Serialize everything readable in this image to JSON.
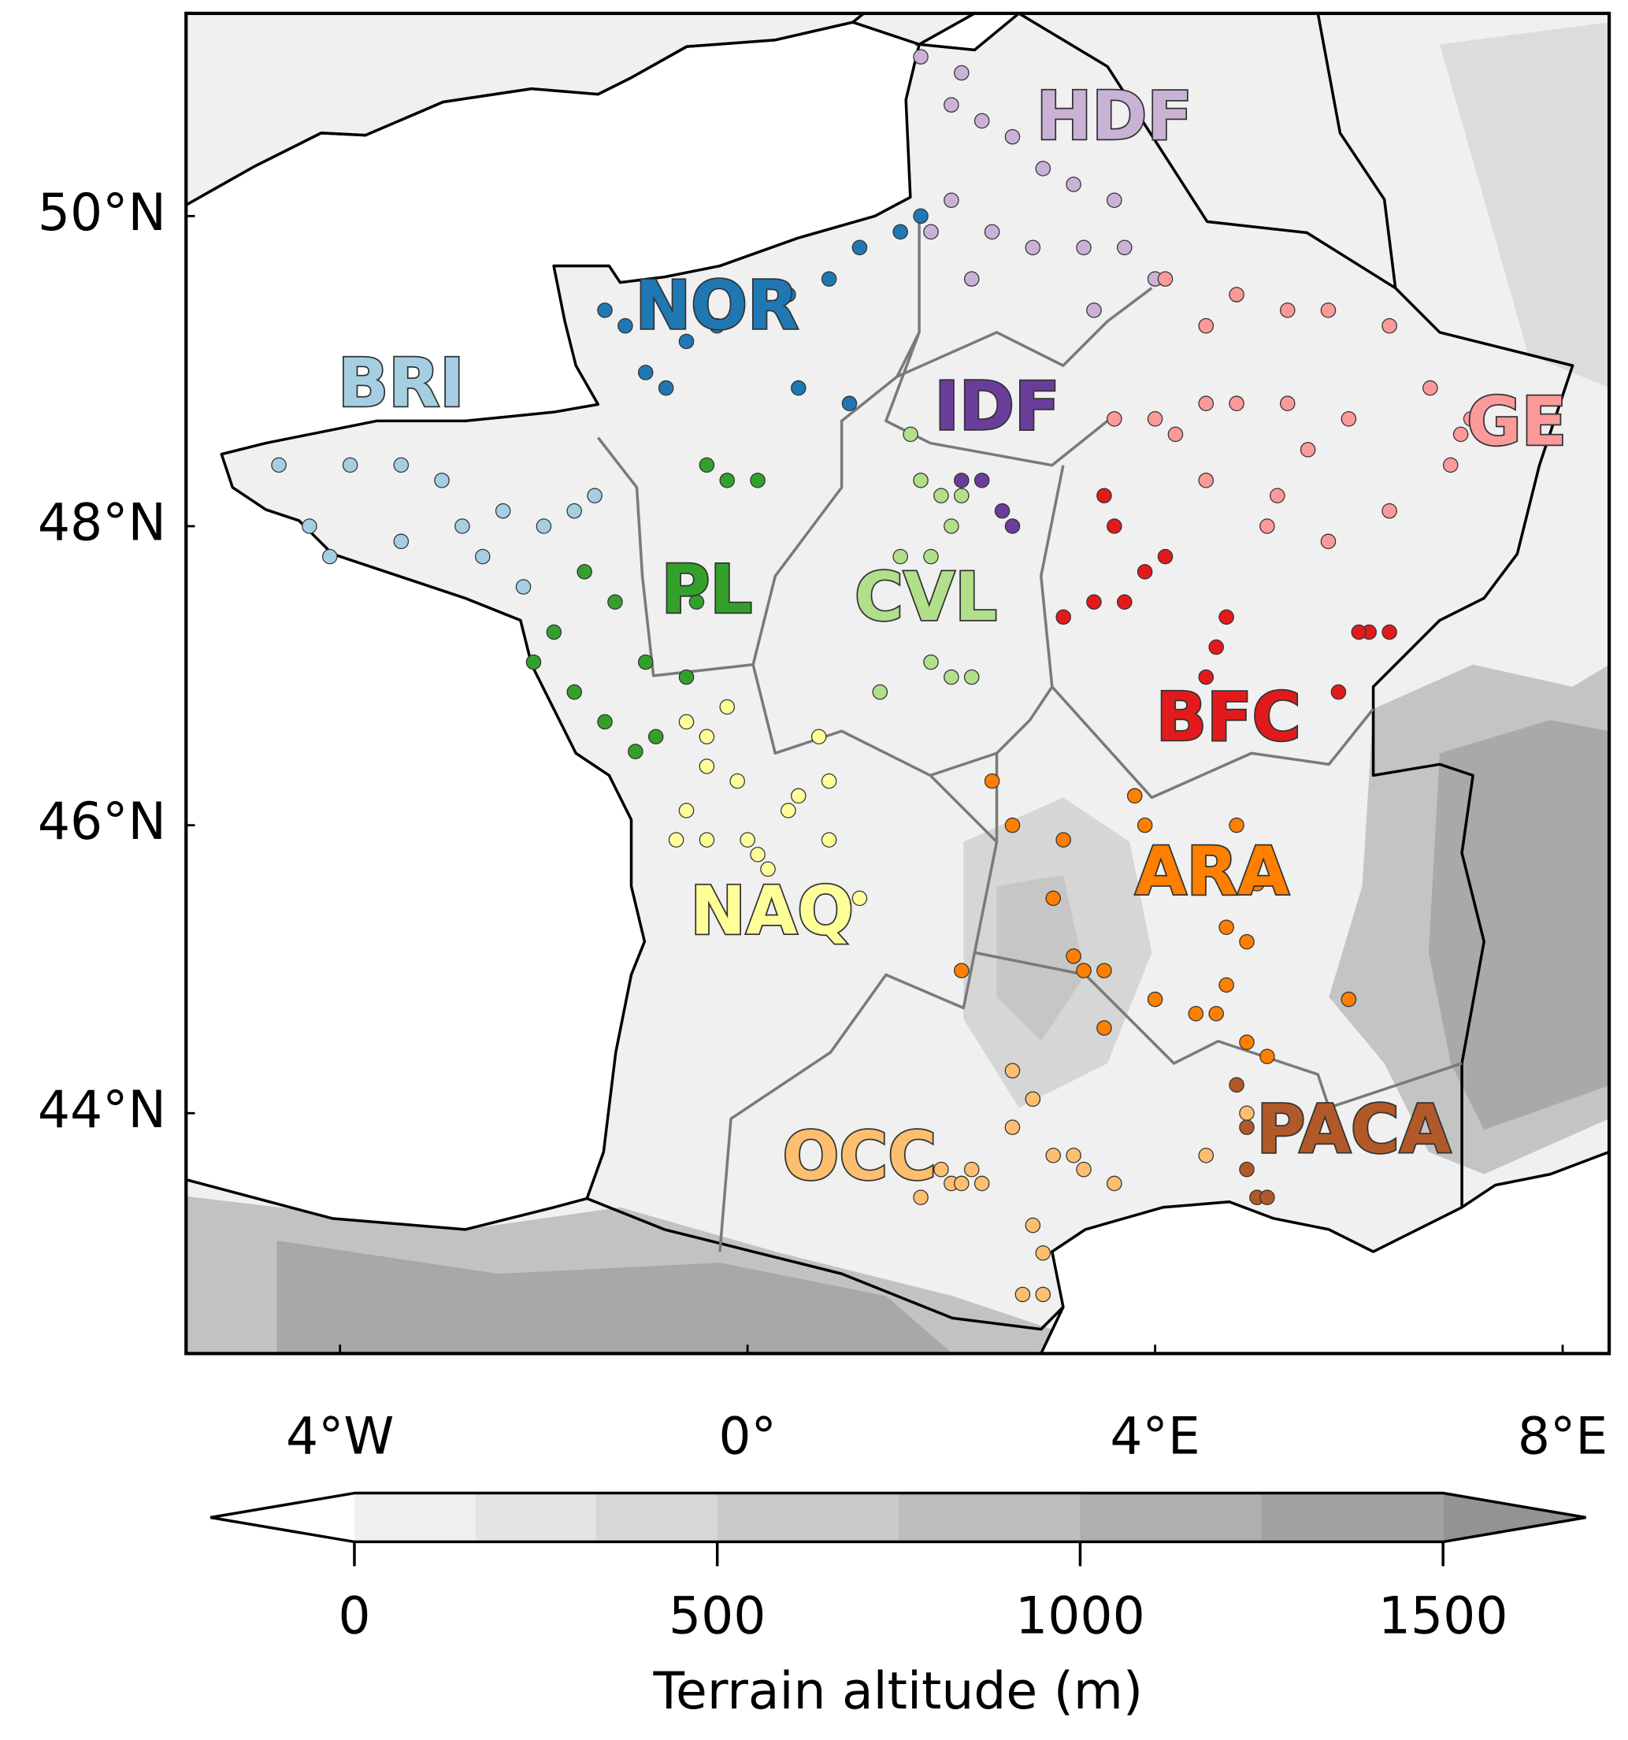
{
  "map": {
    "lat_ticks": [
      {
        "value": 50,
        "label": "50°N"
      },
      {
        "value": 48,
        "label": "48°N"
      },
      {
        "value": 46,
        "label": "46°N"
      },
      {
        "value": 44,
        "label": "44°N"
      }
    ],
    "lon_ticks": [
      {
        "value": -4,
        "label": "4°W"
      },
      {
        "value": 0,
        "label": "0°"
      },
      {
        "value": 4,
        "label": "4°E"
      },
      {
        "value": 8,
        "label": "8°E"
      }
    ],
    "regions": [
      {
        "label": "HDF",
        "color": "#cab2d6",
        "label_at": [
          3.6,
          50.6
        ],
        "stations": [
          [
            2.0,
            50.7
          ],
          [
            2.3,
            50.6
          ],
          [
            2.6,
            50.5
          ],
          [
            2.9,
            50.3
          ],
          [
            3.2,
            50.2
          ],
          [
            3.6,
            50.1
          ],
          [
            2.0,
            50.1
          ],
          [
            2.4,
            49.9
          ],
          [
            2.8,
            49.8
          ],
          [
            3.3,
            49.8
          ],
          [
            3.7,
            49.8
          ],
          [
            2.2,
            49.6
          ],
          [
            1.8,
            49.9
          ],
          [
            3.4,
            49.4
          ],
          [
            4.0,
            49.6
          ],
          [
            1.7,
            51.0
          ],
          [
            2.1,
            50.9
          ]
        ]
      },
      {
        "label": "NOR",
        "color": "#1f78b4",
        "label_at": [
          -0.3,
          49.4
        ],
        "stations": [
          [
            -1.4,
            49.4
          ],
          [
            -1.2,
            49.3
          ],
          [
            -0.6,
            49.2
          ],
          [
            -0.3,
            49.3
          ],
          [
            0.4,
            49.5
          ],
          [
            0.8,
            49.6
          ],
          [
            1.1,
            49.8
          ],
          [
            1.5,
            49.9
          ],
          [
            1.7,
            50.0
          ],
          [
            -0.8,
            48.9
          ],
          [
            0.5,
            48.9
          ],
          [
            1.0,
            48.8
          ],
          [
            -1.0,
            49.0
          ]
        ]
      },
      {
        "label": "BRI",
        "color": "#a6cee3",
        "label_at": [
          -3.4,
          48.9
        ],
        "stations": [
          [
            -4.6,
            48.4
          ],
          [
            -4.3,
            48.0
          ],
          [
            -3.9,
            48.4
          ],
          [
            -3.4,
            48.4
          ],
          [
            -3.0,
            48.3
          ],
          [
            -2.8,
            48.0
          ],
          [
            -2.6,
            47.8
          ],
          [
            -2.4,
            48.1
          ],
          [
            -2.0,
            48.0
          ],
          [
            -1.7,
            48.1
          ],
          [
            -3.4,
            47.9
          ],
          [
            -2.2,
            47.6
          ],
          [
            -1.5,
            48.2
          ],
          [
            -4.1,
            47.8
          ]
        ]
      },
      {
        "label": "IDF",
        "color": "#6a3d9a",
        "label_at": [
          2.45,
          48.75
        ],
        "stations": [
          [
            2.1,
            48.3
          ],
          [
            2.3,
            48.3
          ],
          [
            2.5,
            48.1
          ],
          [
            2.6,
            48.0
          ]
        ]
      },
      {
        "label": "GE",
        "color": "#fb9a99",
        "label_at": [
          7.55,
          48.65
        ],
        "stations": [
          [
            4.1,
            49.6
          ],
          [
            4.8,
            49.5
          ],
          [
            5.3,
            49.4
          ],
          [
            5.7,
            49.4
          ],
          [
            6.3,
            49.3
          ],
          [
            4.5,
            49.3
          ],
          [
            3.6,
            48.7
          ],
          [
            4.0,
            48.7
          ],
          [
            4.2,
            48.6
          ],
          [
            4.5,
            48.8
          ],
          [
            4.8,
            48.8
          ],
          [
            5.3,
            48.8
          ],
          [
            5.5,
            48.5
          ],
          [
            5.9,
            48.7
          ],
          [
            6.7,
            48.9
          ],
          [
            7.1,
            48.7
          ],
          [
            7.0,
            48.6
          ],
          [
            6.9,
            48.4
          ],
          [
            4.5,
            48.3
          ],
          [
            5.7,
            47.9
          ],
          [
            5.1,
            48.0
          ],
          [
            5.2,
            48.2
          ],
          [
            6.3,
            48.1
          ]
        ]
      },
      {
        "label": "PL",
        "color": "#33a02c",
        "label_at": [
          -0.4,
          47.55
        ],
        "stations": [
          [
            -1.6,
            47.7
          ],
          [
            -1.3,
            47.5
          ],
          [
            -1.9,
            47.3
          ],
          [
            -2.1,
            47.1
          ],
          [
            -1.7,
            46.9
          ],
          [
            -1.4,
            46.7
          ],
          [
            -0.9,
            46.6
          ],
          [
            -1.0,
            47.1
          ],
          [
            -0.6,
            47.0
          ],
          [
            -0.4,
            48.4
          ],
          [
            -0.2,
            48.3
          ],
          [
            0.1,
            48.3
          ],
          [
            -0.5,
            47.5
          ],
          [
            -1.1,
            46.5
          ]
        ]
      },
      {
        "label": "CVL",
        "color": "#b2df8a",
        "label_at": [
          1.75,
          47.5
        ],
        "stations": [
          [
            1.6,
            48.6
          ],
          [
            1.7,
            48.3
          ],
          [
            1.9,
            48.2
          ],
          [
            2.1,
            48.2
          ],
          [
            2.0,
            48.0
          ],
          [
            1.5,
            47.8
          ],
          [
            1.8,
            47.8
          ],
          [
            1.8,
            47.1
          ],
          [
            2.0,
            47.0
          ],
          [
            2.2,
            47.0
          ],
          [
            1.3,
            46.9
          ]
        ]
      },
      {
        "label": "BFC",
        "color": "#e31a1c",
        "label_at": [
          4.72,
          46.7
        ],
        "stations": [
          [
            3.5,
            48.2
          ],
          [
            3.6,
            48.0
          ],
          [
            4.1,
            47.8
          ],
          [
            3.9,
            47.7
          ],
          [
            3.7,
            47.5
          ],
          [
            3.1,
            47.4
          ],
          [
            3.4,
            47.5
          ],
          [
            4.7,
            47.4
          ],
          [
            4.6,
            47.2
          ],
          [
            4.5,
            47.0
          ],
          [
            6.3,
            47.3
          ],
          [
            6.1,
            47.3
          ],
          [
            6.0,
            47.3
          ],
          [
            5.8,
            46.9
          ]
        ]
      },
      {
        "label": "ARA",
        "color": "#ff7f00",
        "label_at": [
          4.56,
          45.65
        ],
        "stations": [
          [
            2.4,
            46.3
          ],
          [
            2.6,
            46.0
          ],
          [
            3.1,
            45.9
          ],
          [
            3.8,
            46.2
          ],
          [
            3.9,
            46.0
          ],
          [
            4.8,
            46.0
          ],
          [
            5.0,
            45.6
          ],
          [
            4.7,
            45.3
          ],
          [
            4.9,
            45.2
          ],
          [
            3.0,
            45.5
          ],
          [
            3.2,
            45.1
          ],
          [
            3.3,
            45.0
          ],
          [
            3.5,
            45.0
          ],
          [
            4.0,
            44.8
          ],
          [
            4.4,
            44.7
          ],
          [
            4.6,
            44.7
          ],
          [
            4.7,
            44.9
          ],
          [
            4.9,
            44.5
          ],
          [
            5.1,
            44.4
          ],
          [
            5.9,
            44.8
          ],
          [
            2.1,
            45.0
          ],
          [
            3.5,
            44.6
          ]
        ]
      },
      {
        "label": "NAQ",
        "color": "#ffff99",
        "label_at": [
          0.24,
          45.38
        ],
        "stations": [
          [
            -0.6,
            46.7
          ],
          [
            -0.4,
            46.6
          ],
          [
            -0.2,
            46.8
          ],
          [
            -0.4,
            46.4
          ],
          [
            -0.1,
            46.3
          ],
          [
            -0.6,
            46.1
          ],
          [
            -0.7,
            45.9
          ],
          [
            -0.4,
            45.9
          ],
          [
            0.0,
            45.9
          ],
          [
            0.1,
            45.8
          ],
          [
            0.2,
            45.7
          ],
          [
            0.4,
            46.1
          ],
          [
            0.5,
            46.2
          ],
          [
            0.8,
            46.3
          ],
          [
            0.8,
            45.9
          ],
          [
            1.1,
            45.5
          ],
          [
            0.7,
            46.6
          ]
        ]
      },
      {
        "label": "OCC",
        "color": "#fdbf6f",
        "label_at": [
          1.1,
          43.66
        ],
        "stations": [
          [
            2.6,
            44.3
          ],
          [
            2.8,
            44.1
          ],
          [
            2.6,
            43.9
          ],
          [
            2.2,
            43.6
          ],
          [
            2.3,
            43.5
          ],
          [
            3.0,
            43.7
          ],
          [
            3.2,
            43.7
          ],
          [
            3.3,
            43.6
          ],
          [
            3.6,
            43.5
          ],
          [
            1.9,
            43.6
          ],
          [
            1.7,
            43.4
          ],
          [
            2.0,
            43.5
          ],
          [
            2.1,
            43.5
          ],
          [
            2.8,
            43.2
          ],
          [
            2.9,
            43.0
          ],
          [
            2.7,
            42.7
          ],
          [
            2.9,
            42.7
          ],
          [
            4.5,
            43.7
          ],
          [
            4.9,
            44.0
          ]
        ]
      },
      {
        "label": "PACA",
        "color": "#b15928",
        "label_at": [
          5.95,
          43.85
        ],
        "stations": [
          [
            4.8,
            44.2
          ],
          [
            4.9,
            43.9
          ],
          [
            4.9,
            43.6
          ],
          [
            5.0,
            43.4
          ],
          [
            5.1,
            43.4
          ]
        ]
      }
    ],
    "colorbar": {
      "label": "Terrain altitude (m)",
      "lim": [
        0,
        1500
      ],
      "ticks": [
        0,
        500,
        1000,
        1500
      ],
      "bounds": [
        0,
        167,
        333,
        500,
        750,
        1000,
        1250,
        1500
      ],
      "colors": [
        "#f0f0f0",
        "#e4e4e4",
        "#d7d7d7",
        "#cacaca",
        "#bdbdbd",
        "#afafaf",
        "#a1a1a1"
      ],
      "under_color": "#ffffff",
      "over_color": "#939393"
    }
  }
}
